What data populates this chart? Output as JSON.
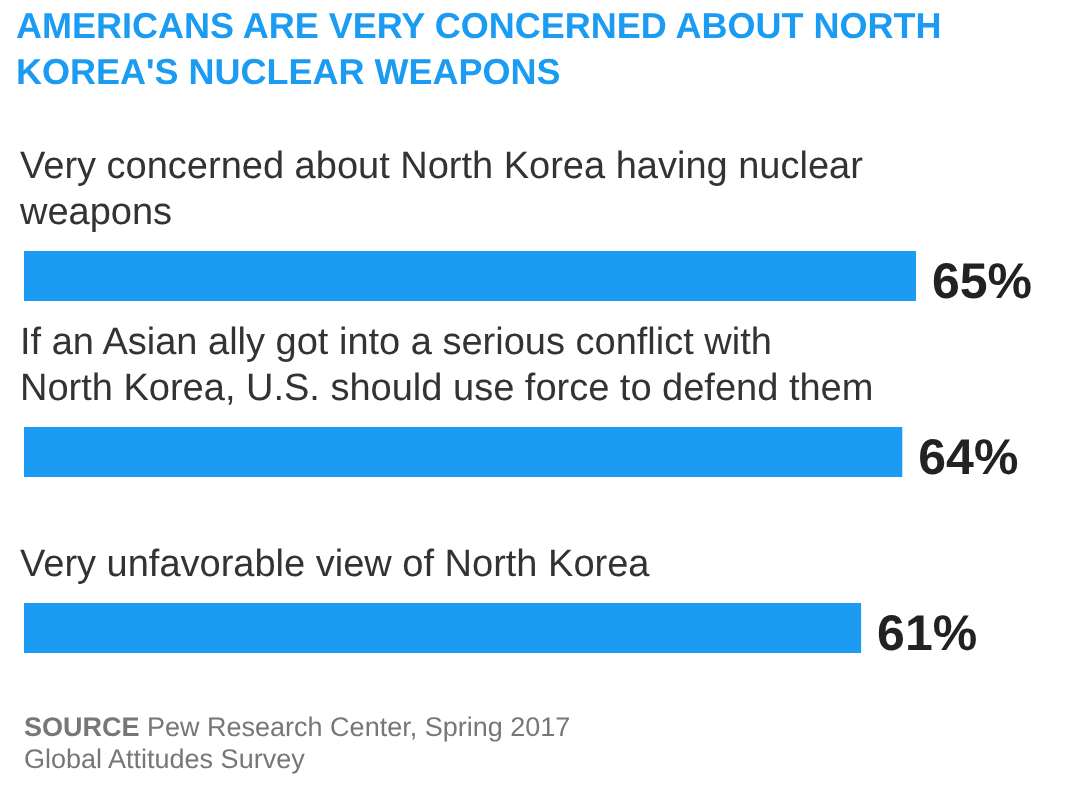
{
  "chart_data": {
    "type": "bar",
    "orientation": "horizontal",
    "title": "AMERICANS ARE VERY CONCERNED ABOUT NORTH KOREA'S NUCLEAR WEAPONS",
    "categories": [
      "Very concerned about North Korea having nuclear weapons",
      "If an Asian ally got into a serious conflict with North Korea, U.S. should use force to defend them",
      "Very  unfavorable view of North Korea"
    ],
    "values": [
      65,
      64,
      61
    ],
    "value_labels": [
      "65%",
      "64%",
      "61%"
    ],
    "color": "#1b9cf2",
    "annotations": [
      "SOURCE Pew Research Center, Spring 2017 Global Attitudes Survey"
    ]
  }
}
